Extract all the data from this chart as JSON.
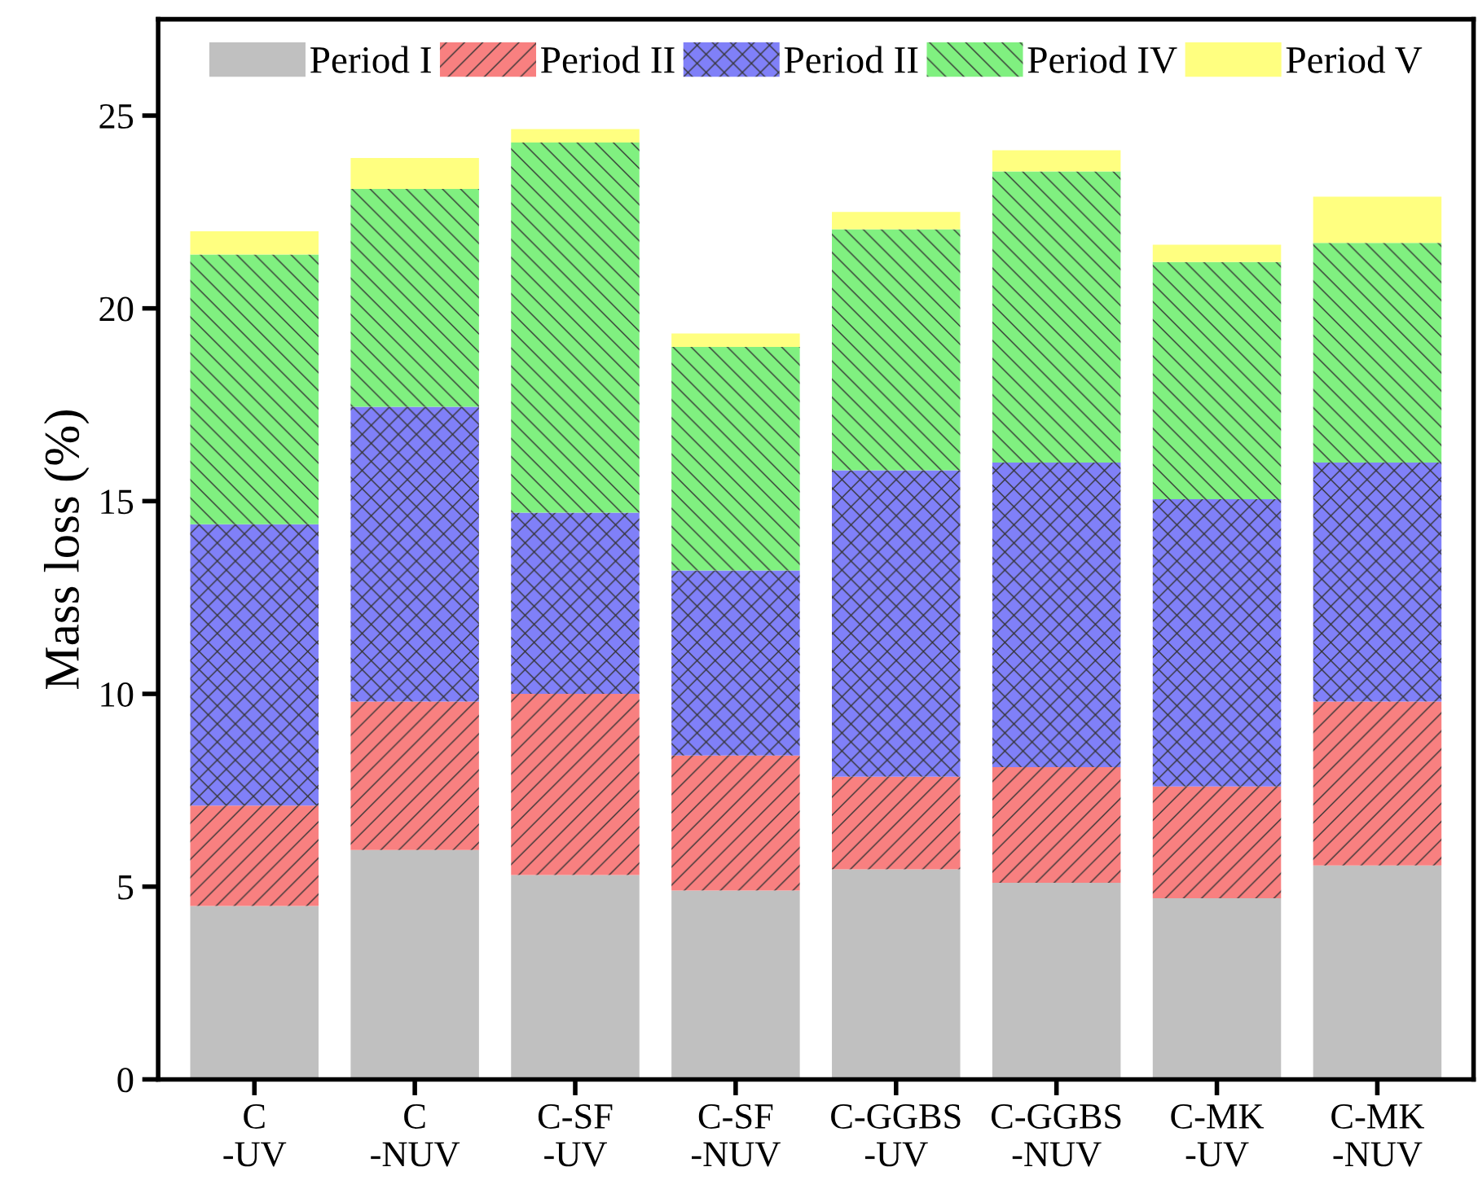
{
  "chart_data": {
    "type": "bar",
    "stacked": true,
    "ylabel": "Mass loss (%)",
    "categories": [
      "C\n-UV",
      "C\n-NUV",
      "C-SF\n-UV",
      "C-SF\n-NUV",
      "C-GGBS\n-UV",
      "C-GGBS\n-NUV",
      "C-MK\n-UV",
      "C-MK\n-NUV"
    ],
    "series": [
      {
        "name": "Period I",
        "color": "#c0c0c0",
        "values": [
          4.5,
          5.95,
          5.3,
          4.9,
          5.45,
          5.1,
          4.7,
          5.55
        ]
      },
      {
        "name": "Period II",
        "color": "#f88080",
        "values": [
          2.6,
          3.85,
          4.7,
          3.5,
          2.4,
          3.0,
          2.9,
          4.25
        ]
      },
      {
        "name": "Period II",
        "color": "#8080f8",
        "values": [
          7.3,
          7.65,
          4.7,
          4.8,
          7.95,
          7.9,
          7.45,
          6.2
        ]
      },
      {
        "name": "Period IV",
        "color": "#80f080",
        "values": [
          7.0,
          5.65,
          9.6,
          5.8,
          6.25,
          7.55,
          6.15,
          5.7
        ]
      },
      {
        "name": "Period V",
        "color": "#ffff80",
        "values": [
          0.6,
          0.8,
          0.35,
          0.35,
          0.45,
          0.55,
          0.45,
          1.2
        ]
      }
    ],
    "ylim": [
      0,
      27.5
    ],
    "yticks": [
      0,
      5,
      10,
      15,
      20,
      25
    ],
    "grid": false,
    "legend": "top"
  }
}
